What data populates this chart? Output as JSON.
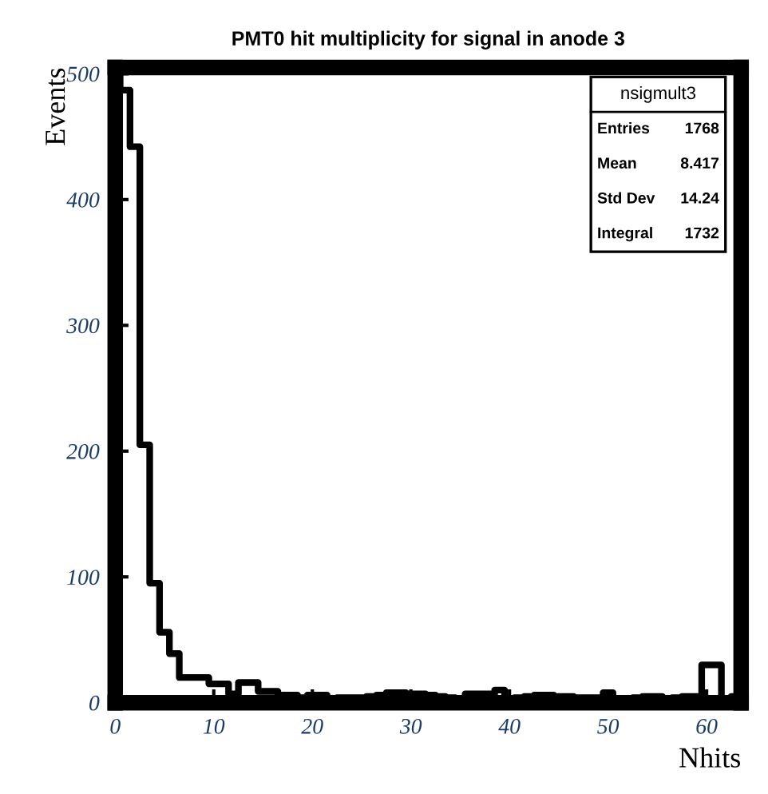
{
  "chart_data": {
    "type": "histogram",
    "title": "PMT0 hit multiplicity for signal in anode 3",
    "xlabel": "Nhits",
    "ylabel": "Events",
    "bins": [
      -0.5,
      0.5,
      1.5,
      2.5,
      3.5,
      4.5,
      5.5,
      6.5,
      7.5,
      8.5,
      9.5,
      10.5,
      11.5,
      12.5,
      13.5,
      14.5,
      15.5,
      16.5,
      17.5,
      18.5,
      19.5,
      20.5,
      21.5,
      22.5,
      23.5,
      24.5,
      25.5,
      26.5,
      27.5,
      28.5,
      29.5,
      30.5,
      31.5,
      32.5,
      33.5,
      34.5,
      35.5,
      36.5,
      37.5,
      38.5,
      39.5,
      40.5,
      41.5,
      42.5,
      43.5,
      44.5,
      45.5,
      46.5,
      47.5,
      48.5,
      49.5,
      50.5,
      51.5,
      52.5,
      53.5,
      54.5,
      55.5,
      56.5,
      57.5,
      58.5,
      59.5,
      60.5,
      61.5,
      62.5,
      63.5
    ],
    "values": [
      500,
      487,
      442,
      205,
      95,
      56,
      39,
      20,
      20,
      20,
      15,
      15,
      7,
      16,
      16,
      9,
      9,
      6,
      6,
      4,
      6,
      6,
      3,
      4,
      4,
      4,
      5,
      6,
      8,
      8,
      7,
      7,
      6,
      5,
      4,
      3,
      7,
      7,
      7,
      10,
      3,
      4,
      5,
      6,
      6,
      5,
      5,
      4,
      4,
      4,
      8,
      3,
      3,
      4,
      5,
      5,
      3,
      4,
      5,
      5,
      30,
      30,
      3,
      5
    ],
    "color": "#000000",
    "xlim": [
      0,
      63.5
    ],
    "ylim": [
      0,
      505
    ],
    "xticks": [
      0,
      10,
      20,
      30,
      40,
      50,
      60
    ],
    "yticks": [
      0,
      100,
      200,
      300,
      400,
      500
    ],
    "grid": false,
    "annotations": [
      "nsigmult3",
      "Entries",
      "1768",
      "Mean",
      "8.417",
      "Std Dev",
      "14.24",
      "Integral",
      "1732"
    ]
  }
}
